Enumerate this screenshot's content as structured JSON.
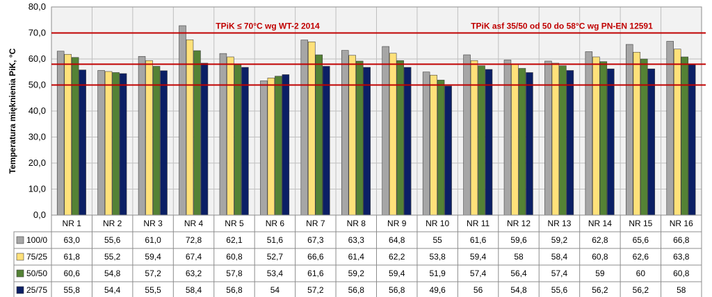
{
  "chart_data": {
    "type": "bar",
    "ylabel": "Temperatura mięknienia PiK, °C",
    "ylim": [
      0,
      80
    ],
    "yticks": [
      "0,0",
      "10,0",
      "20,0",
      "30,0",
      "40,0",
      "50,0",
      "60,0",
      "70,0",
      "80,0"
    ],
    "grid": true,
    "categories": [
      "NR 1",
      "NR 2",
      "NR 3",
      "NR 4",
      "NR 5",
      "NR 6",
      "NR 7",
      "NR 8",
      "NR 9",
      "NR 10",
      "NR 11",
      "NR 12",
      "NR 13",
      "NR 14",
      "NR 15",
      "NR 16"
    ],
    "series": [
      {
        "name": "100/0",
        "color": "#a6a6a6",
        "values": [
          63.0,
          55.6,
          61.0,
          72.8,
          62.1,
          51.6,
          67.3,
          63.3,
          64.8,
          55,
          61.6,
          59.6,
          59.2,
          62.8,
          65.6,
          66.8
        ],
        "labels": [
          "63,0",
          "55,6",
          "61,0",
          "72,8",
          "62,1",
          "51,6",
          "67,3",
          "63,3",
          "64,8",
          "55",
          "61,6",
          "59,6",
          "59,2",
          "62,8",
          "65,6",
          "66,8"
        ]
      },
      {
        "name": "75/25",
        "color": "#ffe17a",
        "values": [
          61.8,
          55.2,
          59.4,
          67.4,
          60.8,
          52.7,
          66.6,
          61.4,
          62.2,
          53.8,
          59.4,
          58,
          58.4,
          60.8,
          62.6,
          63.8
        ],
        "labels": [
          "61,8",
          "55,2",
          "59,4",
          "67,4",
          "60,8",
          "52,7",
          "66,6",
          "61,4",
          "62,2",
          "53,8",
          "59,4",
          "58",
          "58,4",
          "60,8",
          "62,6",
          "63,8"
        ]
      },
      {
        "name": "50/50",
        "color": "#548235",
        "values": [
          60.6,
          54.8,
          57.2,
          63.2,
          57.8,
          53.4,
          61.6,
          59.2,
          59.4,
          51.9,
          57.4,
          56.4,
          57.4,
          59,
          60,
          60.8
        ],
        "labels": [
          "60,6",
          "54,8",
          "57,2",
          "63,2",
          "57,8",
          "53,4",
          "61,6",
          "59,2",
          "59,4",
          "51,9",
          "57,4",
          "56,4",
          "57,4",
          "59",
          "60",
          "60,8"
        ]
      },
      {
        "name": "25/75",
        "color": "#0b1f65",
        "values": [
          55.8,
          54.4,
          55.5,
          58.4,
          56.8,
          54,
          57.2,
          56.8,
          56.8,
          49.6,
          56,
          54.8,
          55.6,
          56.2,
          56.2,
          58
        ],
        "labels": [
          "55,8",
          "54,4",
          "55,5",
          "58,4",
          "56,8",
          "54",
          "57,2",
          "56,8",
          "56,8",
          "49,6",
          "56",
          "54,8",
          "55,6",
          "56,2",
          "56,2",
          "58"
        ]
      }
    ],
    "reference_lines": [
      {
        "value": 70,
        "label": "TPiK ≤ 70°C wg WT-2 2014",
        "color": "#c00000"
      },
      {
        "value": 58,
        "label": "TPiK  asf 35/50 od 50 do 58°C wg PN-EN 12591",
        "color": "#c00000"
      },
      {
        "value": 50,
        "label": "",
        "color": "#c00000"
      }
    ]
  }
}
